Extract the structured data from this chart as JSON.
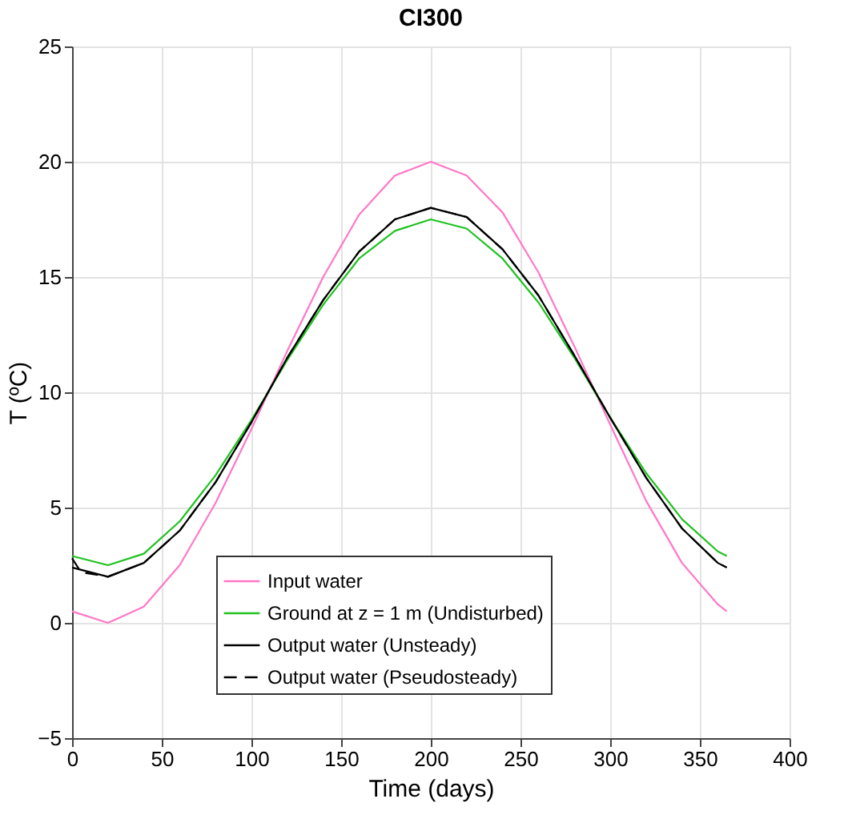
{
  "chart_data": {
    "type": "line",
    "title": "CI300",
    "xlabel": "Time (days)",
    "ylabel": "T (ºC)",
    "x": [
      0,
      20,
      40,
      60,
      80,
      100,
      120,
      140,
      160,
      180,
      200,
      220,
      240,
      260,
      280,
      300,
      320,
      340,
      360,
      365
    ],
    "series": [
      {
        "name": "Input water",
        "color": "#ff77c8",
        "values": [
          0.5,
          0.0,
          0.7,
          2.5,
          5.2,
          8.4,
          11.8,
          15.0,
          17.7,
          19.4,
          20.0,
          19.4,
          17.8,
          15.2,
          12.0,
          8.6,
          5.3,
          2.6,
          0.8,
          0.5
        ]
      },
      {
        "name": "Ground at z = 1 m (Undisturbed)",
        "color": "#1fc21f",
        "values": [
          2.9,
          2.5,
          3.0,
          4.4,
          6.4,
          8.8,
          11.4,
          13.8,
          15.8,
          17.0,
          17.5,
          17.1,
          15.8,
          13.9,
          11.5,
          8.9,
          6.5,
          4.5,
          3.1,
          2.9
        ]
      },
      {
        "name": "Output water (Unsteady)",
        "color": "#000000",
        "values": [
          2.4,
          2.0,
          2.6,
          4.0,
          6.1,
          8.7,
          11.5,
          14.0,
          16.1,
          17.5,
          18.0,
          17.6,
          16.2,
          14.2,
          11.6,
          8.9,
          6.3,
          4.1,
          2.6,
          2.4
        ]
      },
      {
        "name": "Output water (Pseudosteady)",
        "color": "#000000",
        "line_style": "dashed",
        "x": [
          0,
          5,
          20,
          40,
          60,
          80,
          100,
          120,
          140,
          160,
          180,
          200,
          220,
          240,
          260,
          280,
          300,
          320,
          340,
          360,
          365
        ],
        "values": [
          2.8,
          2.2,
          2.0,
          2.6,
          4.0,
          6.1,
          8.7,
          11.5,
          14.0,
          16.1,
          17.5,
          18.0,
          17.6,
          16.2,
          14.2,
          11.6,
          8.9,
          6.3,
          4.1,
          2.6,
          2.4
        ]
      }
    ],
    "xlim": [
      0,
      400
    ],
    "xticks": [
      0,
      50,
      100,
      150,
      200,
      250,
      300,
      350,
      400
    ],
    "ylim": [
      -5,
      25
    ],
    "yticks": [
      -5,
      0,
      5,
      10,
      15,
      20,
      25
    ],
    "grid": true,
    "legend": "bottom",
    "marker": "none",
    "line_style": "solid"
  }
}
